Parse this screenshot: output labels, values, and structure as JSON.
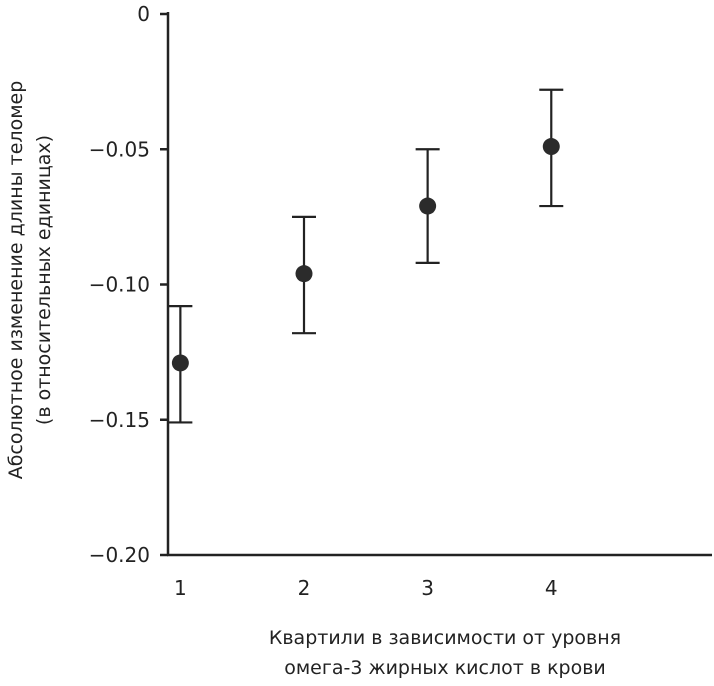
{
  "chart_data": {
    "type": "scatter",
    "title": "",
    "xlabel_lines": [
      "Квартили в зависимости от уровня",
      "омега-3 жирных кислот в крови"
    ],
    "ylabel_lines": [
      "Абсолютное изменение длины теломер",
      "(в относительных единицах)"
    ],
    "x": [
      1,
      2,
      3,
      4
    ],
    "x_tick_labels": [
      "1",
      "2",
      "3",
      "4"
    ],
    "y": [
      -0.129,
      -0.096,
      -0.071,
      -0.049
    ],
    "err_low": [
      -0.151,
      -0.118,
      -0.092,
      -0.071
    ],
    "err_high": [
      -0.108,
      -0.075,
      -0.05,
      -0.028
    ],
    "ylim": [
      -0.2,
      0
    ],
    "y_ticks": [
      0,
      -0.05,
      -0.1,
      -0.15,
      -0.2
    ],
    "y_tick_labels": [
      "0",
      "−0.05",
      "−0.10",
      "−0.15",
      "−0.20"
    ],
    "xlim": [
      0.9,
      5.3
    ],
    "marker_color": "#2b2b2b",
    "axis_color": "#222222",
    "grid": false,
    "legend": "none"
  }
}
